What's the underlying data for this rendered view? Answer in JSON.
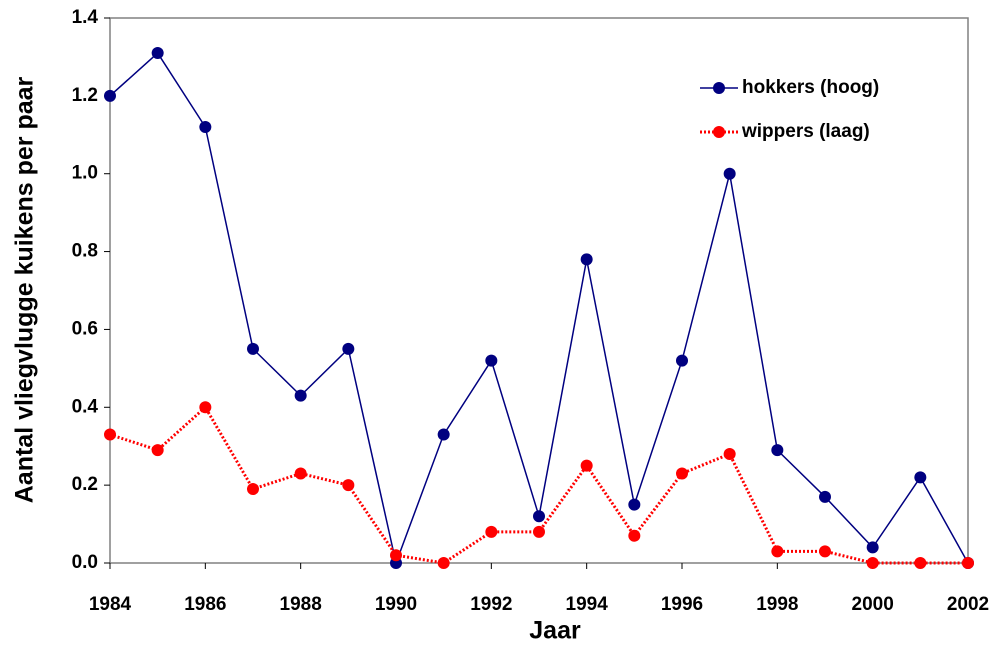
{
  "chart_data": {
    "type": "line",
    "x_label": "Jaar",
    "y_label": "Aantal vliegvlugge kuikens per paar",
    "x": [
      1984,
      1985,
      1986,
      1987,
      1988,
      1989,
      1990,
      1991,
      1992,
      1993,
      1994,
      1995,
      1996,
      1997,
      1998,
      1999,
      2000,
      2001,
      2002
    ],
    "series": [
      {
        "name": "hokkers (hoog)",
        "color": "#000080",
        "line_style": "solid",
        "values": [
          1.2,
          1.31,
          1.12,
          0.55,
          0.43,
          0.55,
          0.0,
          0.33,
          0.52,
          0.12,
          0.78,
          0.15,
          0.52,
          1.0,
          0.29,
          0.17,
          0.04,
          0.22,
          0.0
        ]
      },
      {
        "name": "wippers (laag)",
        "color": "#ff0000",
        "line_style": "dotted",
        "values": [
          0.33,
          0.29,
          0.4,
          0.19,
          0.23,
          0.2,
          0.02,
          0.0,
          0.08,
          0.08,
          0.25,
          0.07,
          0.23,
          0.28,
          0.03,
          0.03,
          0.0,
          0.0,
          0.0
        ]
      }
    ],
    "xlim": [
      1984,
      2002
    ],
    "xticks": [
      1984,
      1986,
      1988,
      1990,
      1992,
      1994,
      1996,
      1998,
      2000,
      2002
    ],
    "ylim": [
      0,
      1.4
    ],
    "yticks": [
      {
        "value": 0,
        "label": "0.0"
      },
      0.2,
      0.4,
      0.6,
      0.8,
      {
        "value": 1,
        "label": "1.0"
      },
      1.2,
      1.4
    ],
    "legend": "upper right",
    "grid": false
  }
}
